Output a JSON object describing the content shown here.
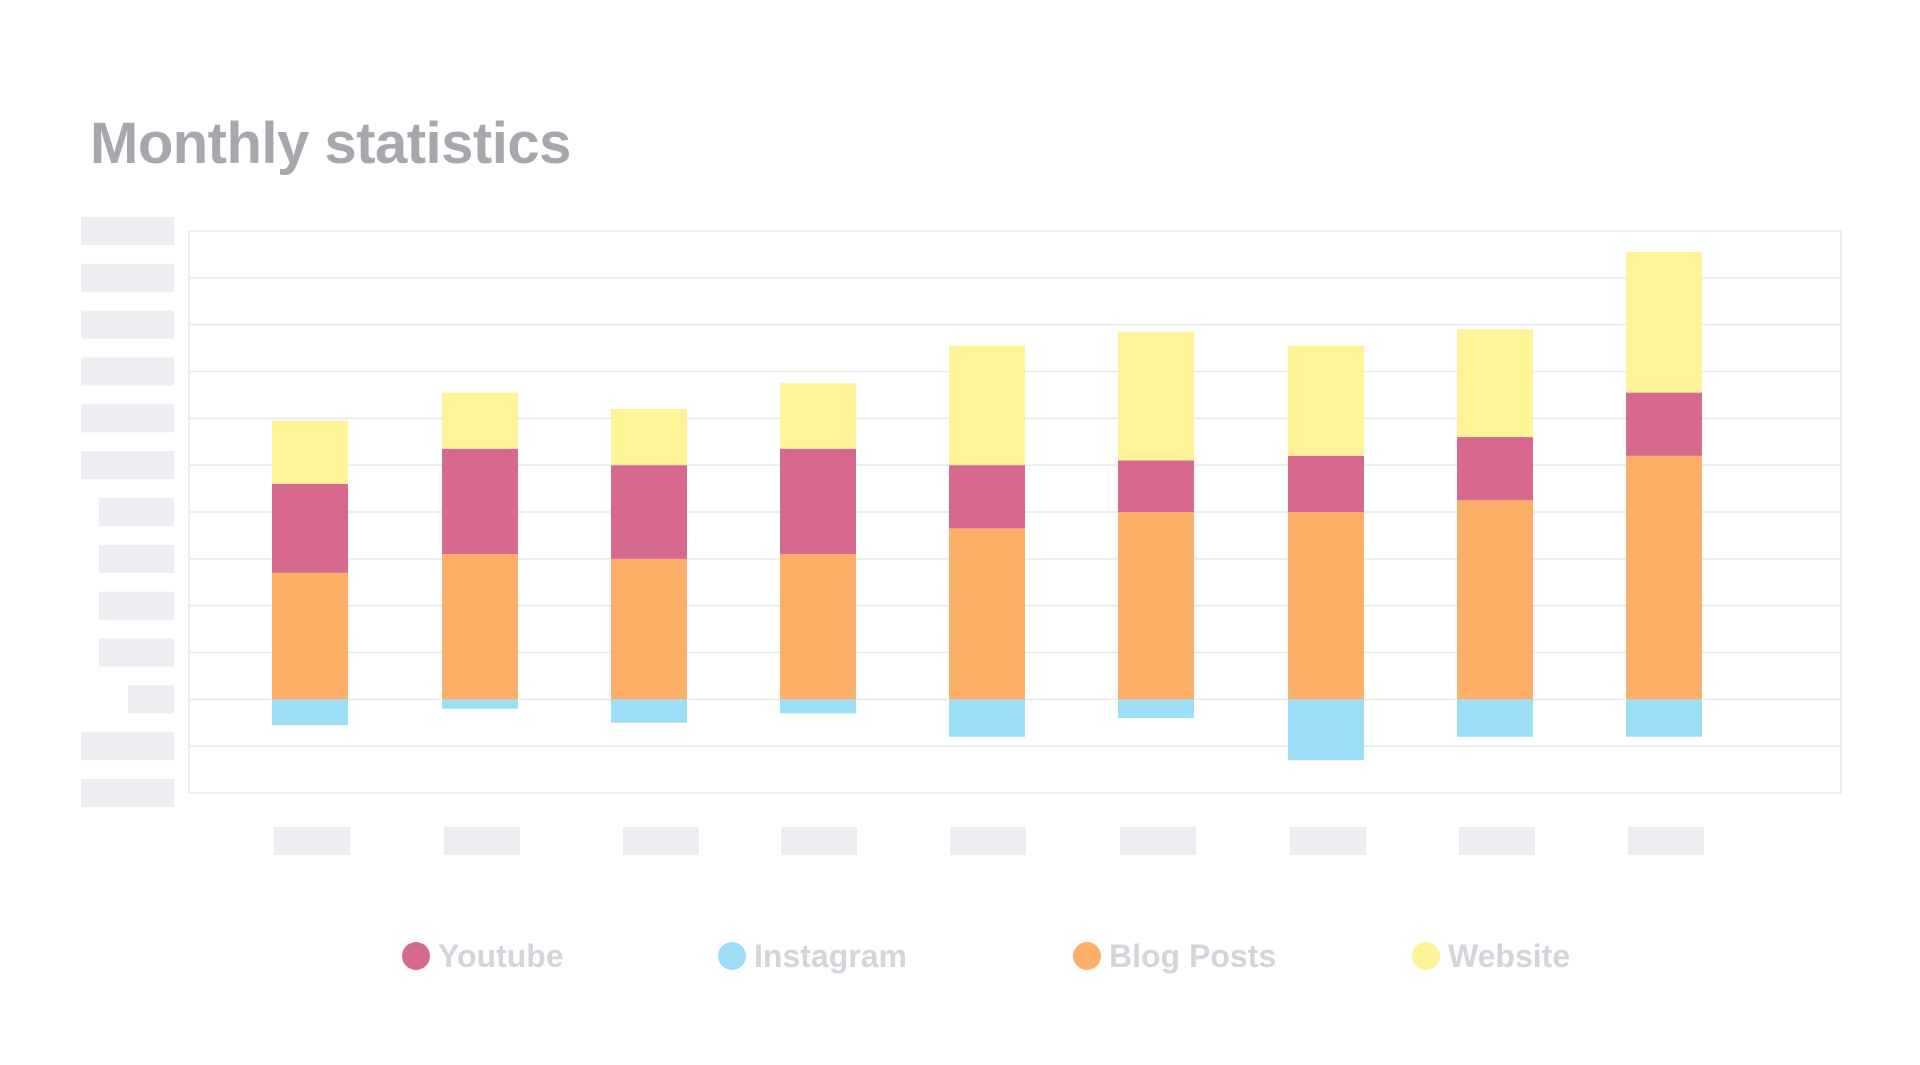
{
  "title": "Monthly statistics",
  "colors": {
    "youtube": "#d6698d",
    "instagram": "#9cdff6",
    "blog": "#fdaf67",
    "website": "#fef396",
    "placeholder": "#eceef2",
    "grid": "#e8e9ec",
    "title": "#a6a8ad",
    "legend_text": "#d3d5da"
  },
  "legend": [
    {
      "label": "Youtube",
      "color": "#d6698d"
    },
    {
      "label": "Instagram",
      "color": "#9cdff6"
    },
    {
      "label": "Blog Posts",
      "color": "#fdaf67"
    },
    {
      "label": "Website",
      "color": "#fef396"
    }
  ],
  "chart_data": {
    "type": "bar",
    "stacked": true,
    "categories": [
      "",
      "",
      "",
      "",
      "",
      "",
      "",
      "",
      ""
    ],
    "series": [
      {
        "name": "Blog Posts",
        "values": [
          2.7,
          3.1,
          3.0,
          3.1,
          3.65,
          4.0,
          4.0,
          4.25,
          5.2
        ]
      },
      {
        "name": "Youtube",
        "values": [
          1.9,
          2.25,
          2.0,
          2.25,
          1.35,
          1.1,
          1.2,
          1.35,
          1.35
        ]
      },
      {
        "name": "Website",
        "values": [
          1.35,
          1.2,
          1.2,
          1.4,
          2.55,
          2.75,
          2.35,
          2.3,
          3.0
        ]
      },
      {
        "name": "Instagram",
        "values": [
          -0.55,
          -0.2,
          -0.5,
          -0.3,
          -0.8,
          -0.4,
          -1.3,
          -0.8,
          -0.8
        ]
      }
    ],
    "ylim": [
      -2,
      10
    ],
    "grid": true,
    "legend_position": "bottom",
    "tick_labels_hidden": true
  }
}
